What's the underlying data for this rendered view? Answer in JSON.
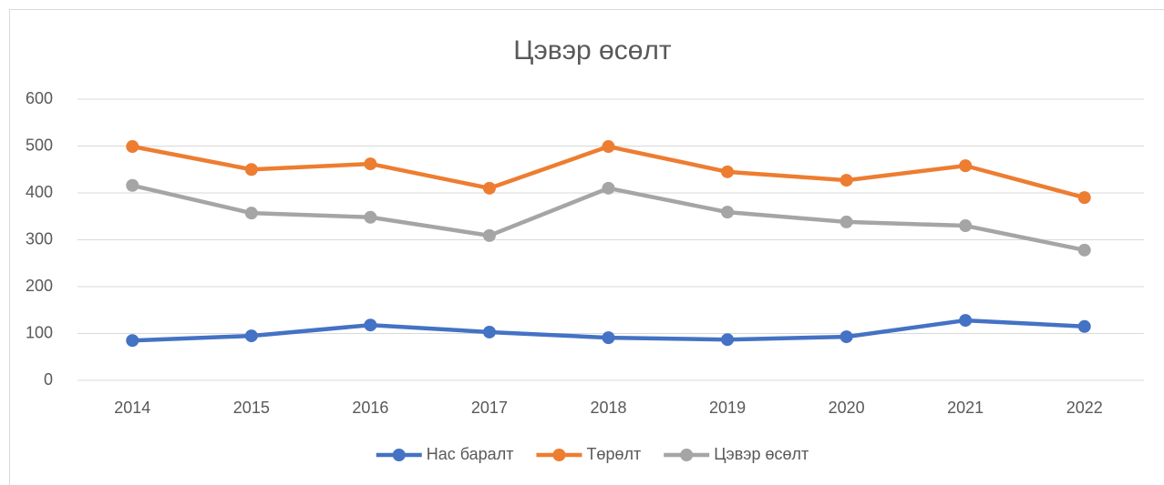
{
  "chart_data": {
    "type": "line",
    "title": "Цэвэр өсөлт",
    "categories": [
      "2014",
      "2015",
      "2016",
      "2017",
      "2018",
      "2019",
      "2020",
      "2021",
      "2022"
    ],
    "series": [
      {
        "name": "Нас баралт",
        "color": "#4472c4",
        "values": [
          85,
          95,
          118,
          103,
          91,
          87,
          93,
          128,
          115
        ]
      },
      {
        "name": "Төрөлт",
        "color": "#ed7d31",
        "values": [
          499,
          450,
          462,
          410,
          499,
          445,
          427,
          458,
          390
        ]
      },
      {
        "name": "Цэвэр өсөлт",
        "color": "#a5a5a5",
        "values": [
          416,
          357,
          348,
          309,
          410,
          359,
          338,
          330,
          278
        ]
      }
    ],
    "ylim": [
      0,
      600
    ],
    "yticks": [
      0,
      100,
      200,
      300,
      400,
      500,
      600
    ],
    "grid": true,
    "legend": "bottom"
  }
}
